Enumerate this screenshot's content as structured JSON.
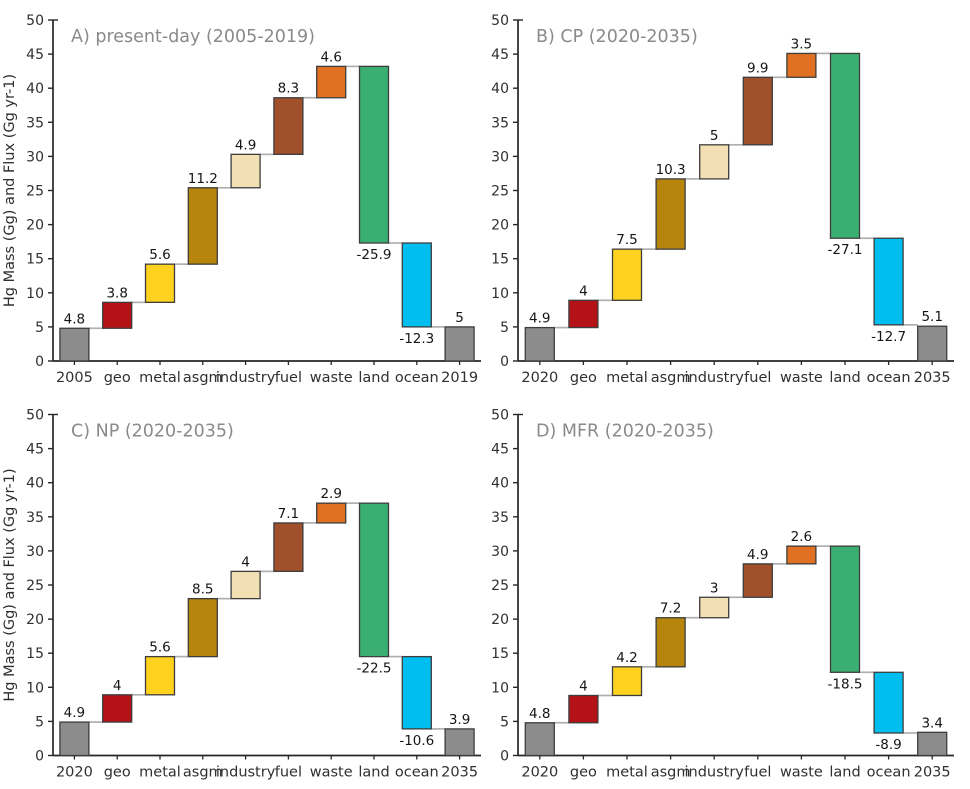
{
  "figure": {
    "background": "#ffffff",
    "shared_ylabel": "Hg Mass (Gg) and Flux (Gg yr-1)"
  },
  "style": {
    "title_color": "#8a8a8a",
    "axis_color": "#262626",
    "tick_label_color": "#303030",
    "value_label_color": "#151515",
    "connector_color": "#b0b0b0",
    "bar_border_color": "#3d3d3d",
    "bar_colors": {
      "endpoint": "#8c8c8c",
      "geo": "#b51218",
      "metal": "#ffd21f",
      "asgm": "#b5860b",
      "industry": "#f3dfb4",
      "fuel": "#a0512b",
      "waste": "#e07122",
      "land": "#3bae72",
      "ocean": "#00bef0"
    }
  },
  "chart_data": [
    {
      "id": "A",
      "type": "bar",
      "subtype": "waterfall",
      "title": "A) present-day (2005-2019)",
      "ylabel": "Hg Mass (Gg) and Flux (Gg yr-1)",
      "show_ylabel": true,
      "ylim": [
        0,
        50
      ],
      "ytick_step": 5,
      "yticks": [
        0,
        5,
        10,
        15,
        20,
        25,
        30,
        35,
        40,
        45,
        50
      ],
      "grid": false,
      "categories": [
        "2005",
        "geo",
        "metal",
        "asgm",
        "industry",
        "fuel",
        "waste",
        "land",
        "ocean",
        "2019"
      ],
      "roles": [
        "start",
        "delta",
        "delta",
        "delta",
        "delta",
        "delta",
        "delta",
        "delta",
        "delta",
        "end"
      ],
      "values": [
        4.8,
        3.8,
        5.6,
        11.2,
        4.9,
        8.3,
        4.6,
        -25.9,
        -12.3,
        5
      ],
      "labels": [
        "4.8",
        "3.8",
        "5.6",
        "11.2",
        "4.9",
        "8.3",
        "4.6",
        "-25.9",
        "-12.3",
        "5"
      ]
    },
    {
      "id": "B",
      "type": "bar",
      "subtype": "waterfall",
      "title": "B) CP (2020-2035)",
      "ylabel": "Hg Mass (Gg) and Flux (Gg yr-1)",
      "show_ylabel": false,
      "ylim": [
        0,
        50
      ],
      "ytick_step": 5,
      "yticks": [
        0,
        5,
        10,
        15,
        20,
        25,
        30,
        35,
        40,
        45,
        50
      ],
      "grid": false,
      "categories": [
        "2020",
        "geo",
        "metal",
        "asgm",
        "industry",
        "fuel",
        "waste",
        "land",
        "ocean",
        "2035"
      ],
      "roles": [
        "start",
        "delta",
        "delta",
        "delta",
        "delta",
        "delta",
        "delta",
        "delta",
        "delta",
        "end"
      ],
      "values": [
        4.9,
        4,
        7.5,
        10.3,
        5,
        9.9,
        3.5,
        -27.1,
        -12.7,
        5.1
      ],
      "labels": [
        "4.9",
        "4",
        "7.5",
        "10.3",
        "5",
        "9.9",
        "3.5",
        "-27.1",
        "-12.7",
        "5.1"
      ]
    },
    {
      "id": "C",
      "type": "bar",
      "subtype": "waterfall",
      "title": "C) NP (2020-2035)",
      "ylabel": "Hg Mass (Gg) and Flux (Gg yr-1)",
      "show_ylabel": true,
      "ylim": [
        0,
        50
      ],
      "ytick_step": 5,
      "yticks": [
        0,
        5,
        10,
        15,
        20,
        25,
        30,
        35,
        40,
        45,
        50
      ],
      "grid": false,
      "categories": [
        "2020",
        "geo",
        "metal",
        "asgm",
        "industry",
        "fuel",
        "waste",
        "land",
        "ocean",
        "2035"
      ],
      "roles": [
        "start",
        "delta",
        "delta",
        "delta",
        "delta",
        "delta",
        "delta",
        "delta",
        "delta",
        "end"
      ],
      "values": [
        4.9,
        4,
        5.6,
        8.5,
        4,
        7.1,
        2.9,
        -22.5,
        -10.6,
        3.9
      ],
      "labels": [
        "4.9",
        "4",
        "5.6",
        "8.5",
        "4",
        "7.1",
        "2.9",
        "-22.5",
        "-10.6",
        "3.9"
      ]
    },
    {
      "id": "D",
      "type": "bar",
      "subtype": "waterfall",
      "title": "D) MFR (2020-2035)",
      "ylabel": "Hg Mass (Gg) and Flux (Gg yr-1)",
      "show_ylabel": false,
      "ylim": [
        0,
        50
      ],
      "ytick_step": 5,
      "yticks": [
        0,
        5,
        10,
        15,
        20,
        25,
        30,
        35,
        40,
        45,
        50
      ],
      "grid": false,
      "categories": [
        "2020",
        "geo",
        "metal",
        "asgm",
        "industry",
        "fuel",
        "waste",
        "land",
        "ocean",
        "2035"
      ],
      "roles": [
        "start",
        "delta",
        "delta",
        "delta",
        "delta",
        "delta",
        "delta",
        "delta",
        "delta",
        "end"
      ],
      "values": [
        4.8,
        4,
        4.2,
        7.2,
        3,
        4.9,
        2.6,
        -18.5,
        -8.9,
        3.4
      ],
      "labels": [
        "4.8",
        "4",
        "4.2",
        "7.2",
        "3",
        "4.9",
        "2.6",
        "-18.5",
        "-8.9",
        "3.4"
      ]
    }
  ]
}
